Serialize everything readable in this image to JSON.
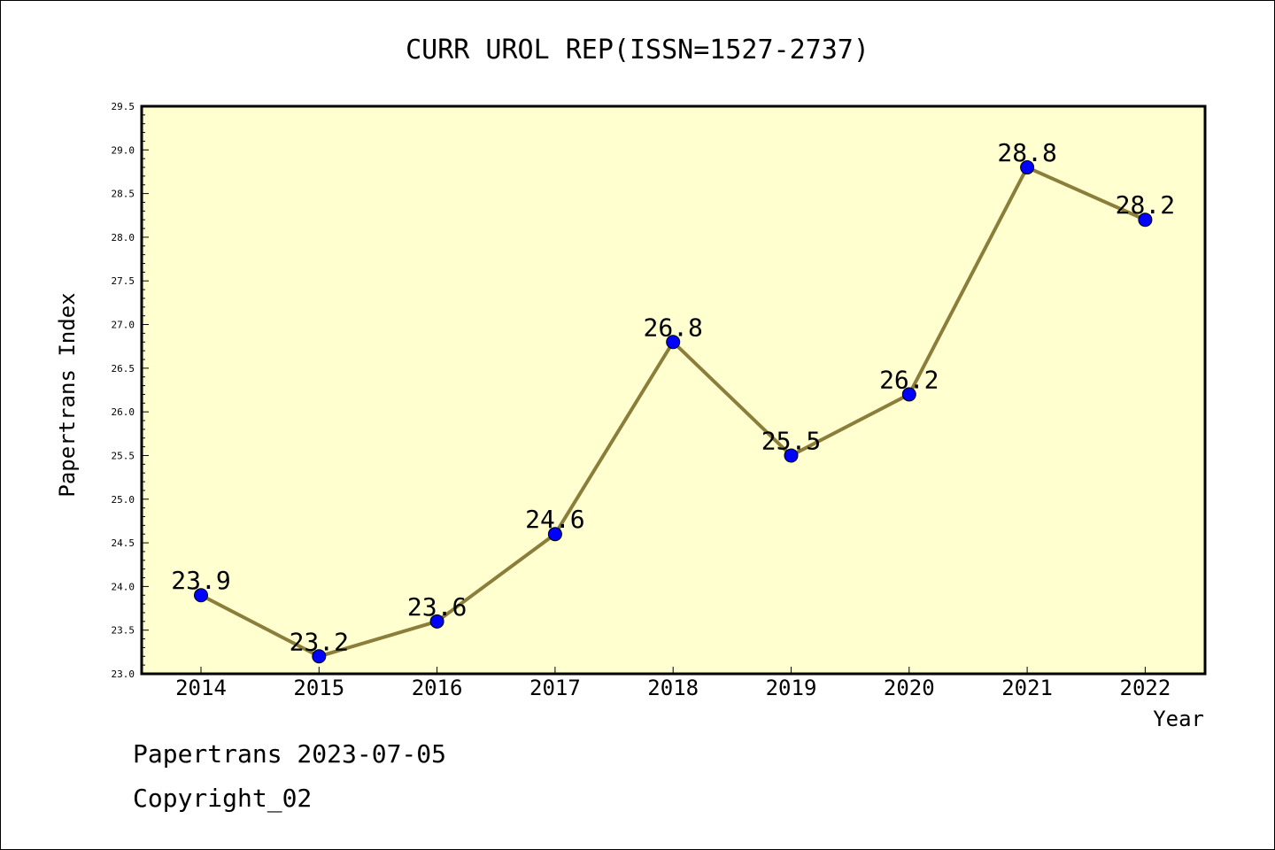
{
  "chart_data": {
    "type": "line",
    "title": "CURR UROL REP(ISSN=1527-2737)",
    "xlabel": "Year",
    "ylabel": "Papertrans Index",
    "categories": [
      "2014",
      "2015",
      "2016",
      "2017",
      "2018",
      "2019",
      "2020",
      "2021",
      "2022"
    ],
    "series": [
      {
        "values": [
          23.9,
          23.2,
          23.6,
          24.6,
          26.8,
          25.5,
          26.2,
          28.8,
          28.2
        ],
        "labels": [
          "23.9",
          "23.2",
          "23.6",
          "24.6",
          "26.8",
          "25.5",
          "26.2",
          "28.8",
          "28.2"
        ]
      }
    ],
    "ylim": [
      23.0,
      29.5
    ],
    "yticks": [
      "23.0",
      "23.5",
      "24.0",
      "24.5",
      "25.0",
      "25.5",
      "26.0",
      "26.5",
      "27.0",
      "27.5",
      "28.0",
      "28.5",
      "29.0",
      "29.5"
    ],
    "grid": false,
    "colors": {
      "plot_background": "#ffffd0",
      "line": "#8b7d3a",
      "marker": "#0000ff"
    }
  },
  "footer": {
    "line1": "Papertrans 2023-07-05",
    "line2": "Copyright_02"
  }
}
